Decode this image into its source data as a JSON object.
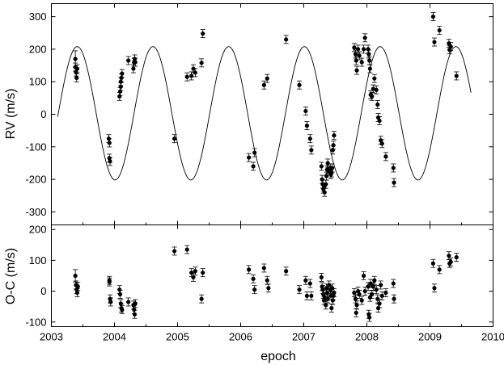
{
  "chart_data": [
    {
      "panel": "rv",
      "type": "scatter",
      "title": "",
      "xlabel": "",
      "ylabel": "RV (m/s)",
      "xlim": [
        2003,
        2010
      ],
      "ylim": [
        -340,
        340
      ],
      "yticks": [
        -300,
        -200,
        -100,
        0,
        100,
        200,
        300
      ],
      "xticks": [
        2003,
        2004,
        2005,
        2006,
        2007,
        2008,
        2009,
        2010
      ],
      "grid": false,
      "legend": "none",
      "model_curve": {
        "amplitude": 205,
        "offset": 3,
        "period_years": 1.2,
        "phase_ref_x": 2003.41,
        "x_range": [
          2003.1,
          2009.65
        ]
      },
      "points": [
        {
          "x": 2003.38,
          "y": 170,
          "err": 25
        },
        {
          "x": 2003.38,
          "y": 145
        },
        {
          "x": 2003.39,
          "y": 130
        },
        {
          "x": 2003.4,
          "y": 112
        },
        {
          "x": 2003.41,
          "y": 140
        },
        {
          "x": 2003.91,
          "y": -75
        },
        {
          "x": 2003.92,
          "y": -88
        },
        {
          "x": 2003.92,
          "y": -135
        },
        {
          "x": 2003.93,
          "y": -145
        },
        {
          "x": 2004.08,
          "y": 55
        },
        {
          "x": 2004.09,
          "y": 70
        },
        {
          "x": 2004.1,
          "y": 85
        },
        {
          "x": 2004.1,
          "y": 100
        },
        {
          "x": 2004.11,
          "y": 112
        },
        {
          "x": 2004.12,
          "y": 125
        },
        {
          "x": 2004.22,
          "y": 165
        },
        {
          "x": 2004.3,
          "y": 140
        },
        {
          "x": 2004.31,
          "y": 160
        },
        {
          "x": 2004.32,
          "y": 170
        },
        {
          "x": 2004.33,
          "y": 160
        },
        {
          "x": 2004.95,
          "y": -75
        },
        {
          "x": 2005.15,
          "y": 115
        },
        {
          "x": 2005.22,
          "y": 118
        },
        {
          "x": 2005.25,
          "y": 140
        },
        {
          "x": 2005.28,
          "y": 128
        },
        {
          "x": 2005.38,
          "y": 158
        },
        {
          "x": 2005.4,
          "y": 248
        },
        {
          "x": 2006.13,
          "y": -133
        },
        {
          "x": 2006.2,
          "y": -160
        },
        {
          "x": 2006.22,
          "y": -118
        },
        {
          "x": 2006.37,
          "y": 90
        },
        {
          "x": 2006.42,
          "y": 110
        },
        {
          "x": 2006.72,
          "y": 230
        },
        {
          "x": 2006.93,
          "y": 90
        },
        {
          "x": 2007.03,
          "y": 10
        },
        {
          "x": 2007.05,
          "y": -35
        },
        {
          "x": 2007.1,
          "y": -75
        },
        {
          "x": 2007.12,
          "y": -110
        },
        {
          "x": 2007.28,
          "y": -160
        },
        {
          "x": 2007.29,
          "y": -200
        },
        {
          "x": 2007.3,
          "y": -215
        },
        {
          "x": 2007.31,
          "y": -230
        },
        {
          "x": 2007.32,
          "y": -225
        },
        {
          "x": 2007.33,
          "y": -240
        },
        {
          "x": 2007.35,
          "y": -215
        },
        {
          "x": 2007.36,
          "y": -190
        },
        {
          "x": 2007.37,
          "y": -170
        },
        {
          "x": 2007.38,
          "y": -150
        },
        {
          "x": 2007.4,
          "y": -175
        },
        {
          "x": 2007.42,
          "y": -165
        },
        {
          "x": 2007.43,
          "y": -185
        },
        {
          "x": 2007.44,
          "y": -180
        },
        {
          "x": 2007.45,
          "y": -165
        },
        {
          "x": 2007.46,
          "y": -110
        },
        {
          "x": 2007.47,
          "y": -95
        },
        {
          "x": 2007.48,
          "y": -65
        },
        {
          "x": 2007.8,
          "y": 205
        },
        {
          "x": 2007.82,
          "y": 185
        },
        {
          "x": 2007.83,
          "y": 165
        },
        {
          "x": 2007.84,
          "y": 135
        },
        {
          "x": 2007.86,
          "y": 200
        },
        {
          "x": 2007.88,
          "y": 180
        },
        {
          "x": 2007.92,
          "y": 160
        },
        {
          "x": 2007.95,
          "y": 200
        },
        {
          "x": 2007.97,
          "y": 235
        },
        {
          "x": 2008.02,
          "y": 200
        },
        {
          "x": 2008.03,
          "y": 185
        },
        {
          "x": 2008.04,
          "y": 165
        },
        {
          "x": 2008.05,
          "y": 140
        },
        {
          "x": 2008.06,
          "y": 60
        },
        {
          "x": 2008.08,
          "y": 55
        },
        {
          "x": 2008.1,
          "y": 78
        },
        {
          "x": 2008.12,
          "y": 110
        },
        {
          "x": 2008.15,
          "y": 75
        },
        {
          "x": 2008.17,
          "y": 30
        },
        {
          "x": 2008.18,
          "y": -10
        },
        {
          "x": 2008.2,
          "y": -20
        },
        {
          "x": 2008.22,
          "y": -80
        },
        {
          "x": 2008.24,
          "y": -90
        },
        {
          "x": 2008.3,
          "y": -130
        },
        {
          "x": 2008.42,
          "y": -165
        },
        {
          "x": 2008.43,
          "y": -210
        },
        {
          "x": 2009.05,
          "y": 300
        },
        {
          "x": 2009.07,
          "y": 222
        },
        {
          "x": 2009.15,
          "y": 258
        },
        {
          "x": 2009.3,
          "y": 218
        },
        {
          "x": 2009.31,
          "y": 198
        },
        {
          "x": 2009.33,
          "y": 208
        },
        {
          "x": 2009.42,
          "y": 118
        }
      ]
    },
    {
      "panel": "residuals",
      "type": "scatter",
      "title": "",
      "xlabel": "epoch",
      "ylabel": "O-C (m/s)",
      "xlim": [
        2003,
        2010
      ],
      "ylim": [
        -115,
        215
      ],
      "yticks": [
        -100,
        0,
        100,
        200
      ],
      "xticks": [
        2003,
        2004,
        2005,
        2006,
        2007,
        2008,
        2009,
        2010
      ],
      "grid": false,
      "legend": "none",
      "points": [
        {
          "x": 2003.38,
          "y": 50,
          "err": 20
        },
        {
          "x": 2003.39,
          "y": 20
        },
        {
          "x": 2003.4,
          "y": 5
        },
        {
          "x": 2003.41,
          "y": -5
        },
        {
          "x": 2003.42,
          "y": 15
        },
        {
          "x": 2003.92,
          "y": 35
        },
        {
          "x": 2003.92,
          "y": 30
        },
        {
          "x": 2003.93,
          "y": -25
        },
        {
          "x": 2003.94,
          "y": -35
        },
        {
          "x": 2004.08,
          "y": 5
        },
        {
          "x": 2004.09,
          "y": -10
        },
        {
          "x": 2004.1,
          "y": -40
        },
        {
          "x": 2004.11,
          "y": -55
        },
        {
          "x": 2004.12,
          "y": -60
        },
        {
          "x": 2004.22,
          "y": -35
        },
        {
          "x": 2004.3,
          "y": -45
        },
        {
          "x": 2004.31,
          "y": -60
        },
        {
          "x": 2004.32,
          "y": -75
        },
        {
          "x": 2004.33,
          "y": -40
        },
        {
          "x": 2004.95,
          "y": 130
        },
        {
          "x": 2005.15,
          "y": 135
        },
        {
          "x": 2005.22,
          "y": 60
        },
        {
          "x": 2005.25,
          "y": 45
        },
        {
          "x": 2005.28,
          "y": 65
        },
        {
          "x": 2005.38,
          "y": -25
        },
        {
          "x": 2005.4,
          "y": 60
        },
        {
          "x": 2006.13,
          "y": 70
        },
        {
          "x": 2006.2,
          "y": 40
        },
        {
          "x": 2006.22,
          "y": 5
        },
        {
          "x": 2006.37,
          "y": 75
        },
        {
          "x": 2006.42,
          "y": 35
        },
        {
          "x": 2006.44,
          "y": 10
        },
        {
          "x": 2006.72,
          "y": 65
        },
        {
          "x": 2006.93,
          "y": 5
        },
        {
          "x": 2007.03,
          "y": 35
        },
        {
          "x": 2007.05,
          "y": -15
        },
        {
          "x": 2007.1,
          "y": 25
        },
        {
          "x": 2007.12,
          "y": -15
        },
        {
          "x": 2007.28,
          "y": 45
        },
        {
          "x": 2007.29,
          "y": 15
        },
        {
          "x": 2007.3,
          "y": 5
        },
        {
          "x": 2007.31,
          "y": -10
        },
        {
          "x": 2007.32,
          "y": -30
        },
        {
          "x": 2007.33,
          "y": -20
        },
        {
          "x": 2007.35,
          "y": -45
        },
        {
          "x": 2007.36,
          "y": 10
        },
        {
          "x": 2007.37,
          "y": -5
        },
        {
          "x": 2007.38,
          "y": -25
        },
        {
          "x": 2007.4,
          "y": 20
        },
        {
          "x": 2007.42,
          "y": 5
        },
        {
          "x": 2007.43,
          "y": -15
        },
        {
          "x": 2007.44,
          "y": -55
        },
        {
          "x": 2007.45,
          "y": 10
        },
        {
          "x": 2007.46,
          "y": -30
        },
        {
          "x": 2007.47,
          "y": -15
        },
        {
          "x": 2007.48,
          "y": -5
        },
        {
          "x": 2007.8,
          "y": -5
        },
        {
          "x": 2007.82,
          "y": -25
        },
        {
          "x": 2007.83,
          "y": -70
        },
        {
          "x": 2007.84,
          "y": -45
        },
        {
          "x": 2007.86,
          "y": 0
        },
        {
          "x": 2007.88,
          "y": -10
        },
        {
          "x": 2007.92,
          "y": -30
        },
        {
          "x": 2007.95,
          "y": 50
        },
        {
          "x": 2007.97,
          "y": 0
        },
        {
          "x": 2008.02,
          "y": 15
        },
        {
          "x": 2008.03,
          "y": -75
        },
        {
          "x": 2008.04,
          "y": -85
        },
        {
          "x": 2008.05,
          "y": -20
        },
        {
          "x": 2008.06,
          "y": 25
        },
        {
          "x": 2008.08,
          "y": -10
        },
        {
          "x": 2008.1,
          "y": 15
        },
        {
          "x": 2008.12,
          "y": 35
        },
        {
          "x": 2008.15,
          "y": 5
        },
        {
          "x": 2008.17,
          "y": -25
        },
        {
          "x": 2008.18,
          "y": -55
        },
        {
          "x": 2008.2,
          "y": -40
        },
        {
          "x": 2008.22,
          "y": 20
        },
        {
          "x": 2008.24,
          "y": -15
        },
        {
          "x": 2008.3,
          "y": -5
        },
        {
          "x": 2008.42,
          "y": 25
        },
        {
          "x": 2008.43,
          "y": -25
        },
        {
          "x": 2009.05,
          "y": 90
        },
        {
          "x": 2009.07,
          "y": 10
        },
        {
          "x": 2009.15,
          "y": 70
        },
        {
          "x": 2009.3,
          "y": 115
        },
        {
          "x": 2009.31,
          "y": 90
        },
        {
          "x": 2009.33,
          "y": 95
        },
        {
          "x": 2009.42,
          "y": 110
        }
      ]
    }
  ]
}
